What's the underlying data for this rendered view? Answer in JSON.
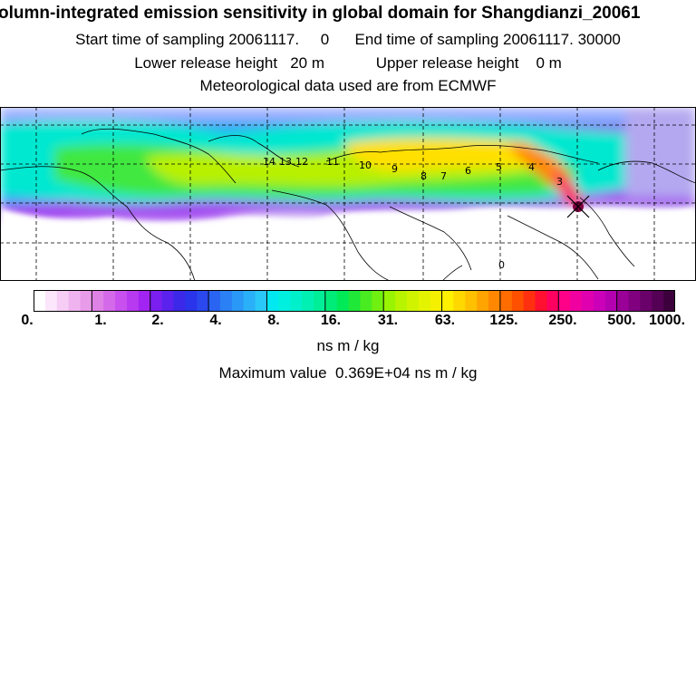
{
  "header": {
    "title": "olumn-integrated emission sensitivity in global domain for Shangdianzi_20061",
    "sampling_start_label": "Start time of sampling",
    "sampling_start_value": "20061117.     0",
    "sampling_end_label": "End time of sampling",
    "sampling_end_value": "20061117. 30000",
    "lower_release_label": "Lower release height",
    "lower_release_value": "20 m",
    "upper_release_label": "Upper release height",
    "upper_release_value": "0 m",
    "met_data_text": "Meteorological data used are from ECMWF"
  },
  "map": {
    "grid_lines": true,
    "receptor_marker": "x-marker",
    "contour_labels": [
      "14",
      "13",
      "12",
      "11",
      "10",
      "9",
      "8",
      "7",
      "6",
      "5",
      "4",
      "3",
      "0"
    ]
  },
  "colorbar": {
    "tick_labels": [
      "0.",
      "1.",
      "2.",
      "4.",
      "8.",
      "16.",
      "31.",
      "63.",
      "125.",
      "250.",
      "500.",
      "1000."
    ],
    "colors": [
      "#ffffff",
      "#fbe6fb",
      "#f5cdf5",
      "#efb4ef",
      "#e89be8",
      "#df82e6",
      "#d469ea",
      "#c750ee",
      "#b83af0",
      "#a224f2",
      "#7a1ff0",
      "#5a22ec",
      "#3c28e8",
      "#2a34ea",
      "#2a48ee",
      "#2a64f2",
      "#2a80f4",
      "#2a98f6",
      "#2ab0f8",
      "#2ac8f8",
      "#00e8f0",
      "#00f0e0",
      "#00f0cc",
      "#00f0b4",
      "#00ee98",
      "#00ec78",
      "#00ea58",
      "#20e838",
      "#48ec20",
      "#70f010",
      "#98f400",
      "#b8f400",
      "#d0f400",
      "#e4f400",
      "#f4f000",
      "#fff000",
      "#ffd800",
      "#ffc000",
      "#ffa400",
      "#ff8800",
      "#ff6c00",
      "#ff5000",
      "#ff3010",
      "#ff1030",
      "#ff0060",
      "#ff0088",
      "#f000a0",
      "#e000b0",
      "#cc00b8",
      "#b400b0",
      "#9a0098",
      "#800080",
      "#6a006a",
      "#540054",
      "#3c003c"
    ],
    "units": "ns m / kg"
  },
  "maximum": {
    "label": "Maximum value",
    "value": "0.369E+04",
    "units": "ns m / kg"
  }
}
